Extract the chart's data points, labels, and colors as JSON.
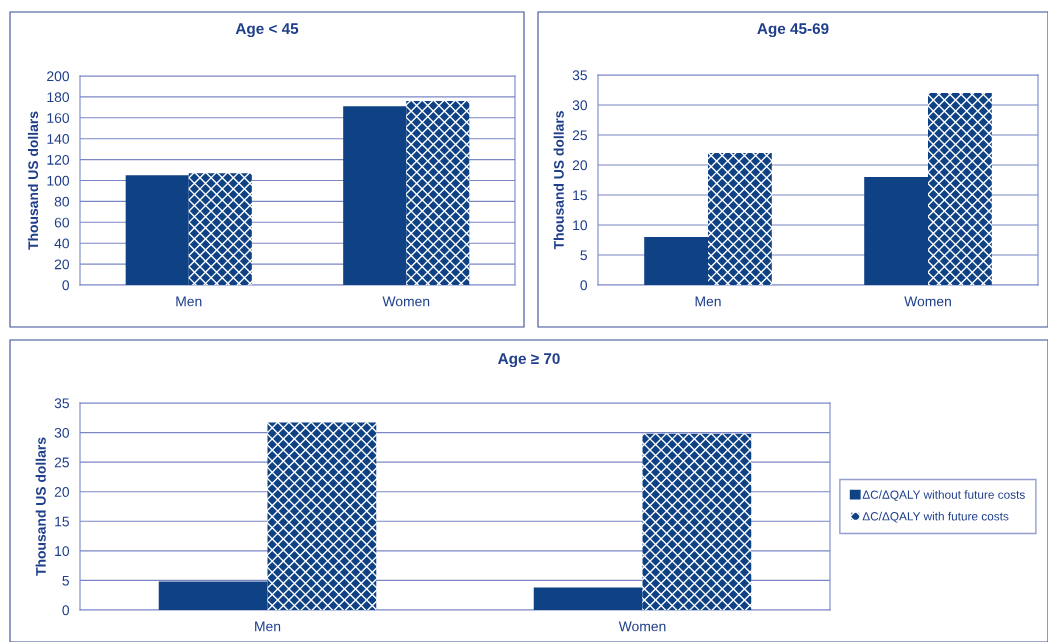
{
  "chart_data": [
    {
      "type": "bar",
      "title": "Age < 45",
      "ylabel": "Thousand US dollars",
      "categories": [
        "Men",
        "Women"
      ],
      "series": [
        {
          "color": "#0f4285",
          "values": [
            105,
            171
          ]
        },
        {
          "color": "#0f4285",
          "values": [
            107,
            176
          ]
        }
      ],
      "ylim": [
        0,
        200
      ],
      "yticks": [
        0,
        20,
        40,
        60,
        80,
        100,
        120,
        140,
        160,
        180,
        200
      ],
      "grid": "y",
      "legend": false
    },
    {
      "type": "bar",
      "title": "Age 45-69",
      "ylabel": "Thousand US dollars",
      "categories": [
        "Men",
        "Women"
      ],
      "series": [
        {
          "color": "#0f4285",
          "values": [
            8,
            18
          ]
        },
        {
          "color": "#0f4285",
          "values": [
            22,
            32
          ]
        }
      ],
      "ylim": [
        0,
        35
      ],
      "yticks": [
        0,
        5,
        10,
        15,
        20,
        25,
        30,
        35
      ],
      "grid": "y",
      "legend": false
    },
    {
      "type": "bar",
      "title": "Age ≥ 70",
      "ylabel": "Thousand US dollars",
      "categories": [
        "Men",
        "Women"
      ],
      "series": [
        {
          "name": "ΔC/ΔQALY without future costs",
          "color": "#0f4285",
          "values": [
            4.8,
            3.8
          ]
        },
        {
          "name": "ΔC/ΔQALY with future costs",
          "color": "#0f4285",
          "values": [
            31.7,
            29.8
          ]
        }
      ],
      "ylim": [
        0,
        35
      ],
      "yticks": [
        0,
        5,
        10,
        15,
        20,
        25,
        30,
        35
      ],
      "grid": "y",
      "legend": "right"
    }
  ]
}
